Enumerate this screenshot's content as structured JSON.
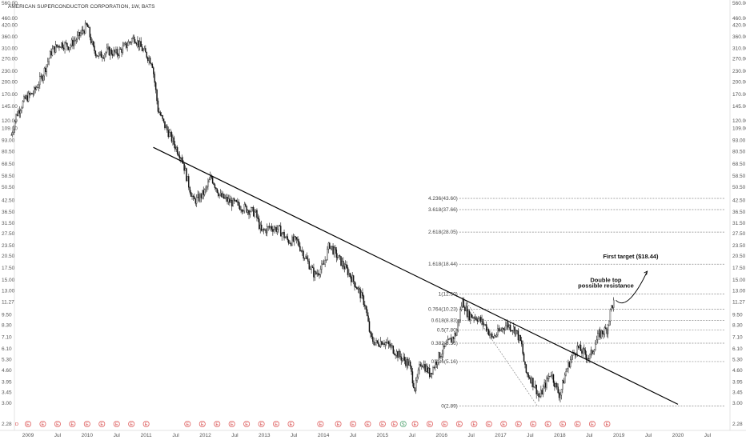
{
  "chart_data": {
    "type": "candlestick",
    "title": "AMERICAN SUPERCONDUCTOR CORPORATION, 1W, BATS",
    "scale": "log",
    "ylim": [
      2.28,
      560
    ],
    "price_ticks": [
      "560.00",
      "460.00",
      "420.00",
      "360.00",
      "310.00",
      "270.00",
      "230.00",
      "200.00",
      "170.00",
      "145.00",
      "120.00",
      "109.00",
      "93.00",
      "80.50",
      "68.50",
      "58.50",
      "50.50",
      "42.50",
      "36.50",
      "31.50",
      "27.50",
      "23.50",
      "20.50",
      "17.50",
      "15.00",
      "13.00",
      "11.27",
      "9.50",
      "8.30",
      "7.10",
      "6.10",
      "5.30",
      "4.60",
      "3.95",
      "3.45",
      "3.00",
      "2.28"
    ],
    "last_price": "11.27",
    "x_ticks": [
      {
        "label": "2009",
        "t": 2009.0
      },
      {
        "label": "Jul",
        "t": 2009.5
      },
      {
        "label": "2010",
        "t": 2010.0
      },
      {
        "label": "Jul",
        "t": 2010.5
      },
      {
        "label": "2011",
        "t": 2011.0
      },
      {
        "label": "Jul",
        "t": 2011.5
      },
      {
        "label": "2012",
        "t": 2012.0
      },
      {
        "label": "Jul",
        "t": 2012.5
      },
      {
        "label": "2013",
        "t": 2013.0
      },
      {
        "label": "Jul",
        "t": 2013.5
      },
      {
        "label": "2014",
        "t": 2014.0
      },
      {
        "label": "Jul",
        "t": 2014.5
      },
      {
        "label": "2015",
        "t": 2015.0
      },
      {
        "label": "Jul",
        "t": 2015.5
      },
      {
        "label": "2016",
        "t": 2016.0
      },
      {
        "label": "Jul",
        "t": 2016.5
      },
      {
        "label": "2017",
        "t": 2017.0
      },
      {
        "label": "Jul",
        "t": 2017.5
      },
      {
        "label": "2018",
        "t": 2018.0
      },
      {
        "label": "Jul",
        "t": 2018.5
      },
      {
        "label": "2019",
        "t": 2019.0
      },
      {
        "label": "Jul",
        "t": 2019.5
      },
      {
        "label": "2020",
        "t": 2020.0
      },
      {
        "label": "Jul",
        "t": 2020.5
      }
    ],
    "price_path": [
      [
        2008.72,
        100
      ],
      [
        2008.8,
        130
      ],
      [
        2008.95,
        160
      ],
      [
        2009.1,
        175
      ],
      [
        2009.25,
        220
      ],
      [
        2009.4,
        300
      ],
      [
        2009.55,
        330
      ],
      [
        2009.7,
        320
      ],
      [
        2009.85,
        360
      ],
      [
        2010.0,
        420
      ],
      [
        2010.1,
        310
      ],
      [
        2010.2,
        280
      ],
      [
        2010.35,
        300
      ],
      [
        2010.5,
        290
      ],
      [
        2010.65,
        320
      ],
      [
        2010.8,
        360
      ],
      [
        2010.95,
        300
      ],
      [
        2011.1,
        260
      ],
      [
        2011.2,
        140
      ],
      [
        2011.3,
        115
      ],
      [
        2011.4,
        100
      ],
      [
        2011.5,
        85
      ],
      [
        2011.6,
        75
      ],
      [
        2011.7,
        55
      ],
      [
        2011.8,
        42
      ],
      [
        2011.9,
        44
      ],
      [
        2012.0,
        48
      ],
      [
        2012.1,
        58
      ],
      [
        2012.25,
        45
      ],
      [
        2012.4,
        42
      ],
      [
        2012.55,
        40
      ],
      [
        2012.7,
        38
      ],
      [
        2012.85,
        36
      ],
      [
        2012.95,
        28
      ],
      [
        2013.1,
        30
      ],
      [
        2013.25,
        29
      ],
      [
        2013.4,
        25
      ],
      [
        2013.55,
        25
      ],
      [
        2013.7,
        20
      ],
      [
        2013.85,
        16
      ],
      [
        2014.0,
        18
      ],
      [
        2014.1,
        24
      ],
      [
        2014.25,
        20
      ],
      [
        2014.4,
        17
      ],
      [
        2014.55,
        14
      ],
      [
        2014.7,
        11
      ],
      [
        2014.8,
        7
      ],
      [
        2014.9,
        6.5
      ],
      [
        2015.0,
        6.8
      ],
      [
        2015.15,
        6.2
      ],
      [
        2015.3,
        5.5
      ],
      [
        2015.45,
        5
      ],
      [
        2015.55,
        3.6
      ],
      [
        2015.65,
        5.2
      ],
      [
        2015.8,
        4.4
      ],
      [
        2015.95,
        5.5
      ],
      [
        2016.1,
        6.5
      ],
      [
        2016.25,
        7.5
      ],
      [
        2016.35,
        11.5
      ],
      [
        2016.45,
        9.5
      ],
      [
        2016.6,
        9.2
      ],
      [
        2016.75,
        8.2
      ],
      [
        2016.85,
        7
      ],
      [
        2016.95,
        7.5
      ],
      [
        2017.1,
        8.4
      ],
      [
        2017.25,
        7.8
      ],
      [
        2017.35,
        6.5
      ],
      [
        2017.42,
        4.5
      ],
      [
        2017.5,
        4.2
      ],
      [
        2017.6,
        3.6
      ],
      [
        2017.65,
        3.2
      ],
      [
        2017.75,
        3.8
      ],
      [
        2017.85,
        4.5
      ],
      [
        2017.95,
        3.6
      ],
      [
        2018.0,
        3.3
      ],
      [
        2018.1,
        4.5
      ],
      [
        2018.2,
        5.5
      ],
      [
        2018.3,
        6.2
      ],
      [
        2018.4,
        5.8
      ],
      [
        2018.5,
        5.4
      ],
      [
        2018.6,
        6.5
      ],
      [
        2018.65,
        7.2
      ],
      [
        2018.7,
        7.5
      ],
      [
        2018.8,
        7.9
      ],
      [
        2018.87,
        10.5
      ],
      [
        2018.92,
        11.27
      ]
    ],
    "trendline": {
      "start": [
        2011.12,
        85
      ],
      "end": [
        2020.0,
        2.95
      ]
    },
    "fib_retracement": {
      "levels": [
        {
          "label": "4.236(43.60)",
          "price": 43.6
        },
        {
          "label": "3.618(37.66)",
          "price": 37.66
        },
        {
          "label": "2.618(28.05)",
          "price": 28.05
        },
        {
          "label": "1.618(18.44)",
          "price": 18.44
        },
        {
          "label": "1(12.50)",
          "price": 12.5
        },
        {
          "label": "0.764(10.23)",
          "price": 10.23
        },
        {
          "label": "0.618(8.83)",
          "price": 8.83
        },
        {
          "label": "0.5(7.80)",
          "price": 7.8
        },
        {
          "label": "0.382(6.56)",
          "price": 6.56
        },
        {
          "label": "0.236(5.16)",
          "price": 5.16
        },
        {
          "label": "0(2.89)",
          "price": 2.89
        }
      ],
      "t_start": 2016.3,
      "t_end": 2020.8,
      "dotted_leg": {
        "from": [
          2016.4,
          11.5
        ],
        "to": [
          2017.62,
          2.89
        ]
      }
    },
    "projection_arrow": {
      "points": [
        [
          2018.95,
          11.5
        ],
        [
          2019.1,
          10.2
        ],
        [
          2019.3,
          12.5
        ],
        [
          2019.48,
          16.8
        ]
      ]
    },
    "annotations": [
      {
        "text": "First target ($18.44)",
        "t": 2019.2,
        "price": 19.9
      },
      {
        "text": "Double top",
        "t": 2018.78,
        "price": 14.6
      },
      {
        "text": "possible resistance",
        "t": 2018.78,
        "price": 13.6
      }
    ],
    "earnings_marks": [
      2009.0,
      2009.25,
      2009.5,
      2009.75,
      2010.0,
      2010.25,
      2010.5,
      2010.75,
      2011.0,
      2011.7,
      2011.95,
      2012.2,
      2012.45,
      2012.7,
      2012.95,
      2013.2,
      2013.45,
      2013.95,
      2014.25,
      2014.5,
      2014.75,
      2015.0,
      2015.2,
      2015.55,
      2015.8,
      2016.05,
      2016.3,
      2016.55,
      2016.8,
      2017.05,
      2017.3,
      2017.55,
      2017.8,
      2018.05,
      2018.3,
      2018.55,
      2018.8
    ],
    "earnings_label": "E",
    "dividend_marks": [
      2015.35
    ],
    "dividend_label": "S",
    "bottom_left_marker": "D"
  }
}
